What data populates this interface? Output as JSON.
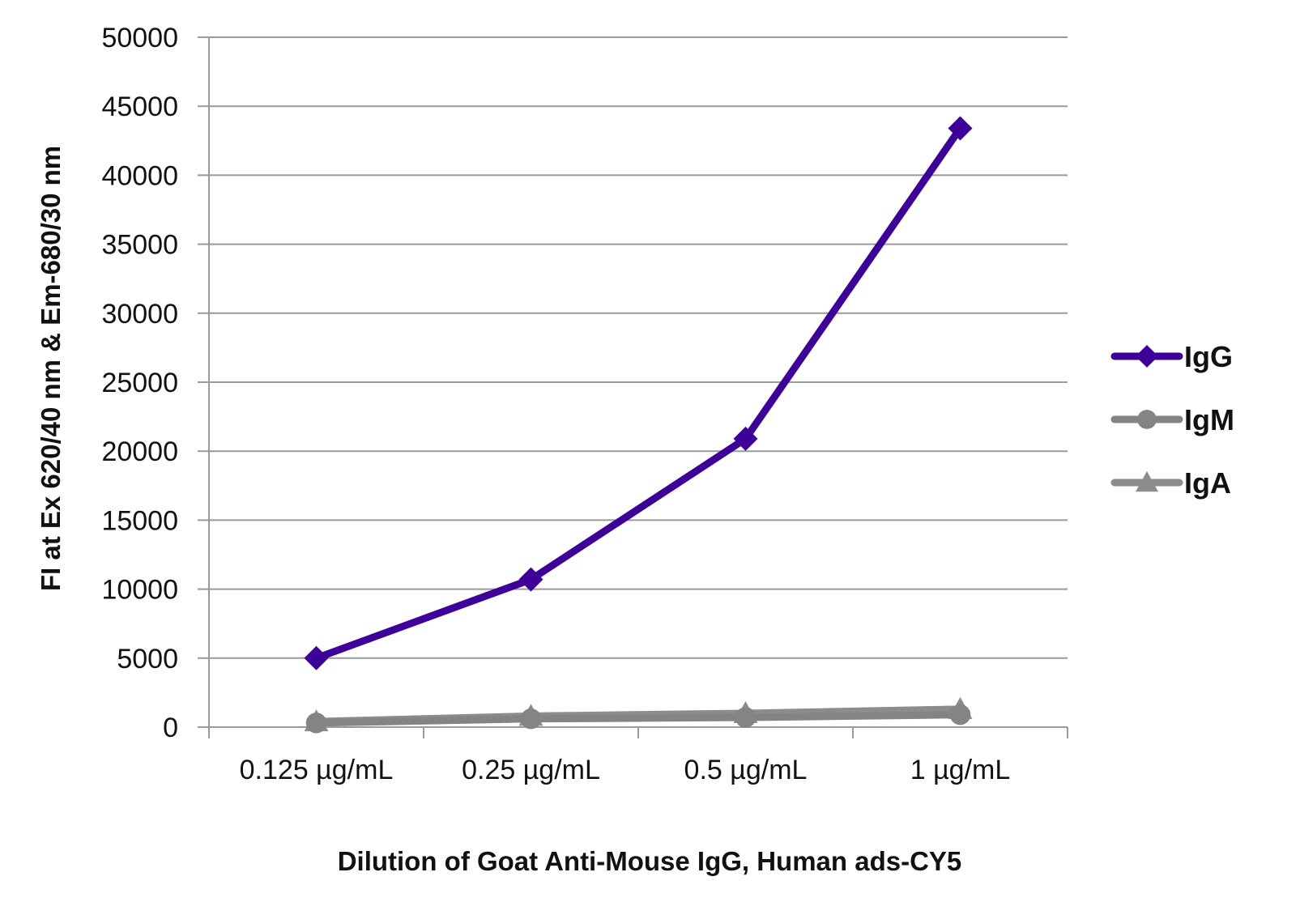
{
  "chart_data": {
    "type": "line",
    "title": "",
    "xlabel": "Dilution of Goat Anti-Mouse IgG, Human ads-CY5",
    "ylabel": "FI at Ex 620/40 nm & Em-680/30 nm",
    "categories": [
      "0.125 µg/mL",
      "0.25 µg/mL",
      "0.5 µg/mL",
      "1 µg/mL"
    ],
    "ylim": [
      0,
      50000
    ],
    "yticks": [
      0,
      5000,
      10000,
      15000,
      20000,
      25000,
      30000,
      35000,
      40000,
      45000,
      50000
    ],
    "grid": true,
    "legend_position": "right",
    "series": [
      {
        "name": "IgG",
        "values": [
          5000,
          10700,
          20900,
          43400
        ],
        "color": "#3d0099",
        "marker": "diamond"
      },
      {
        "name": "IgM",
        "values": [
          300,
          600,
          700,
          900
        ],
        "color": "#848484",
        "marker": "circle"
      },
      {
        "name": "IgA",
        "values": [
          400,
          800,
          1000,
          1300
        ],
        "color": "#8c8c8c",
        "marker": "triangle"
      }
    ]
  }
}
